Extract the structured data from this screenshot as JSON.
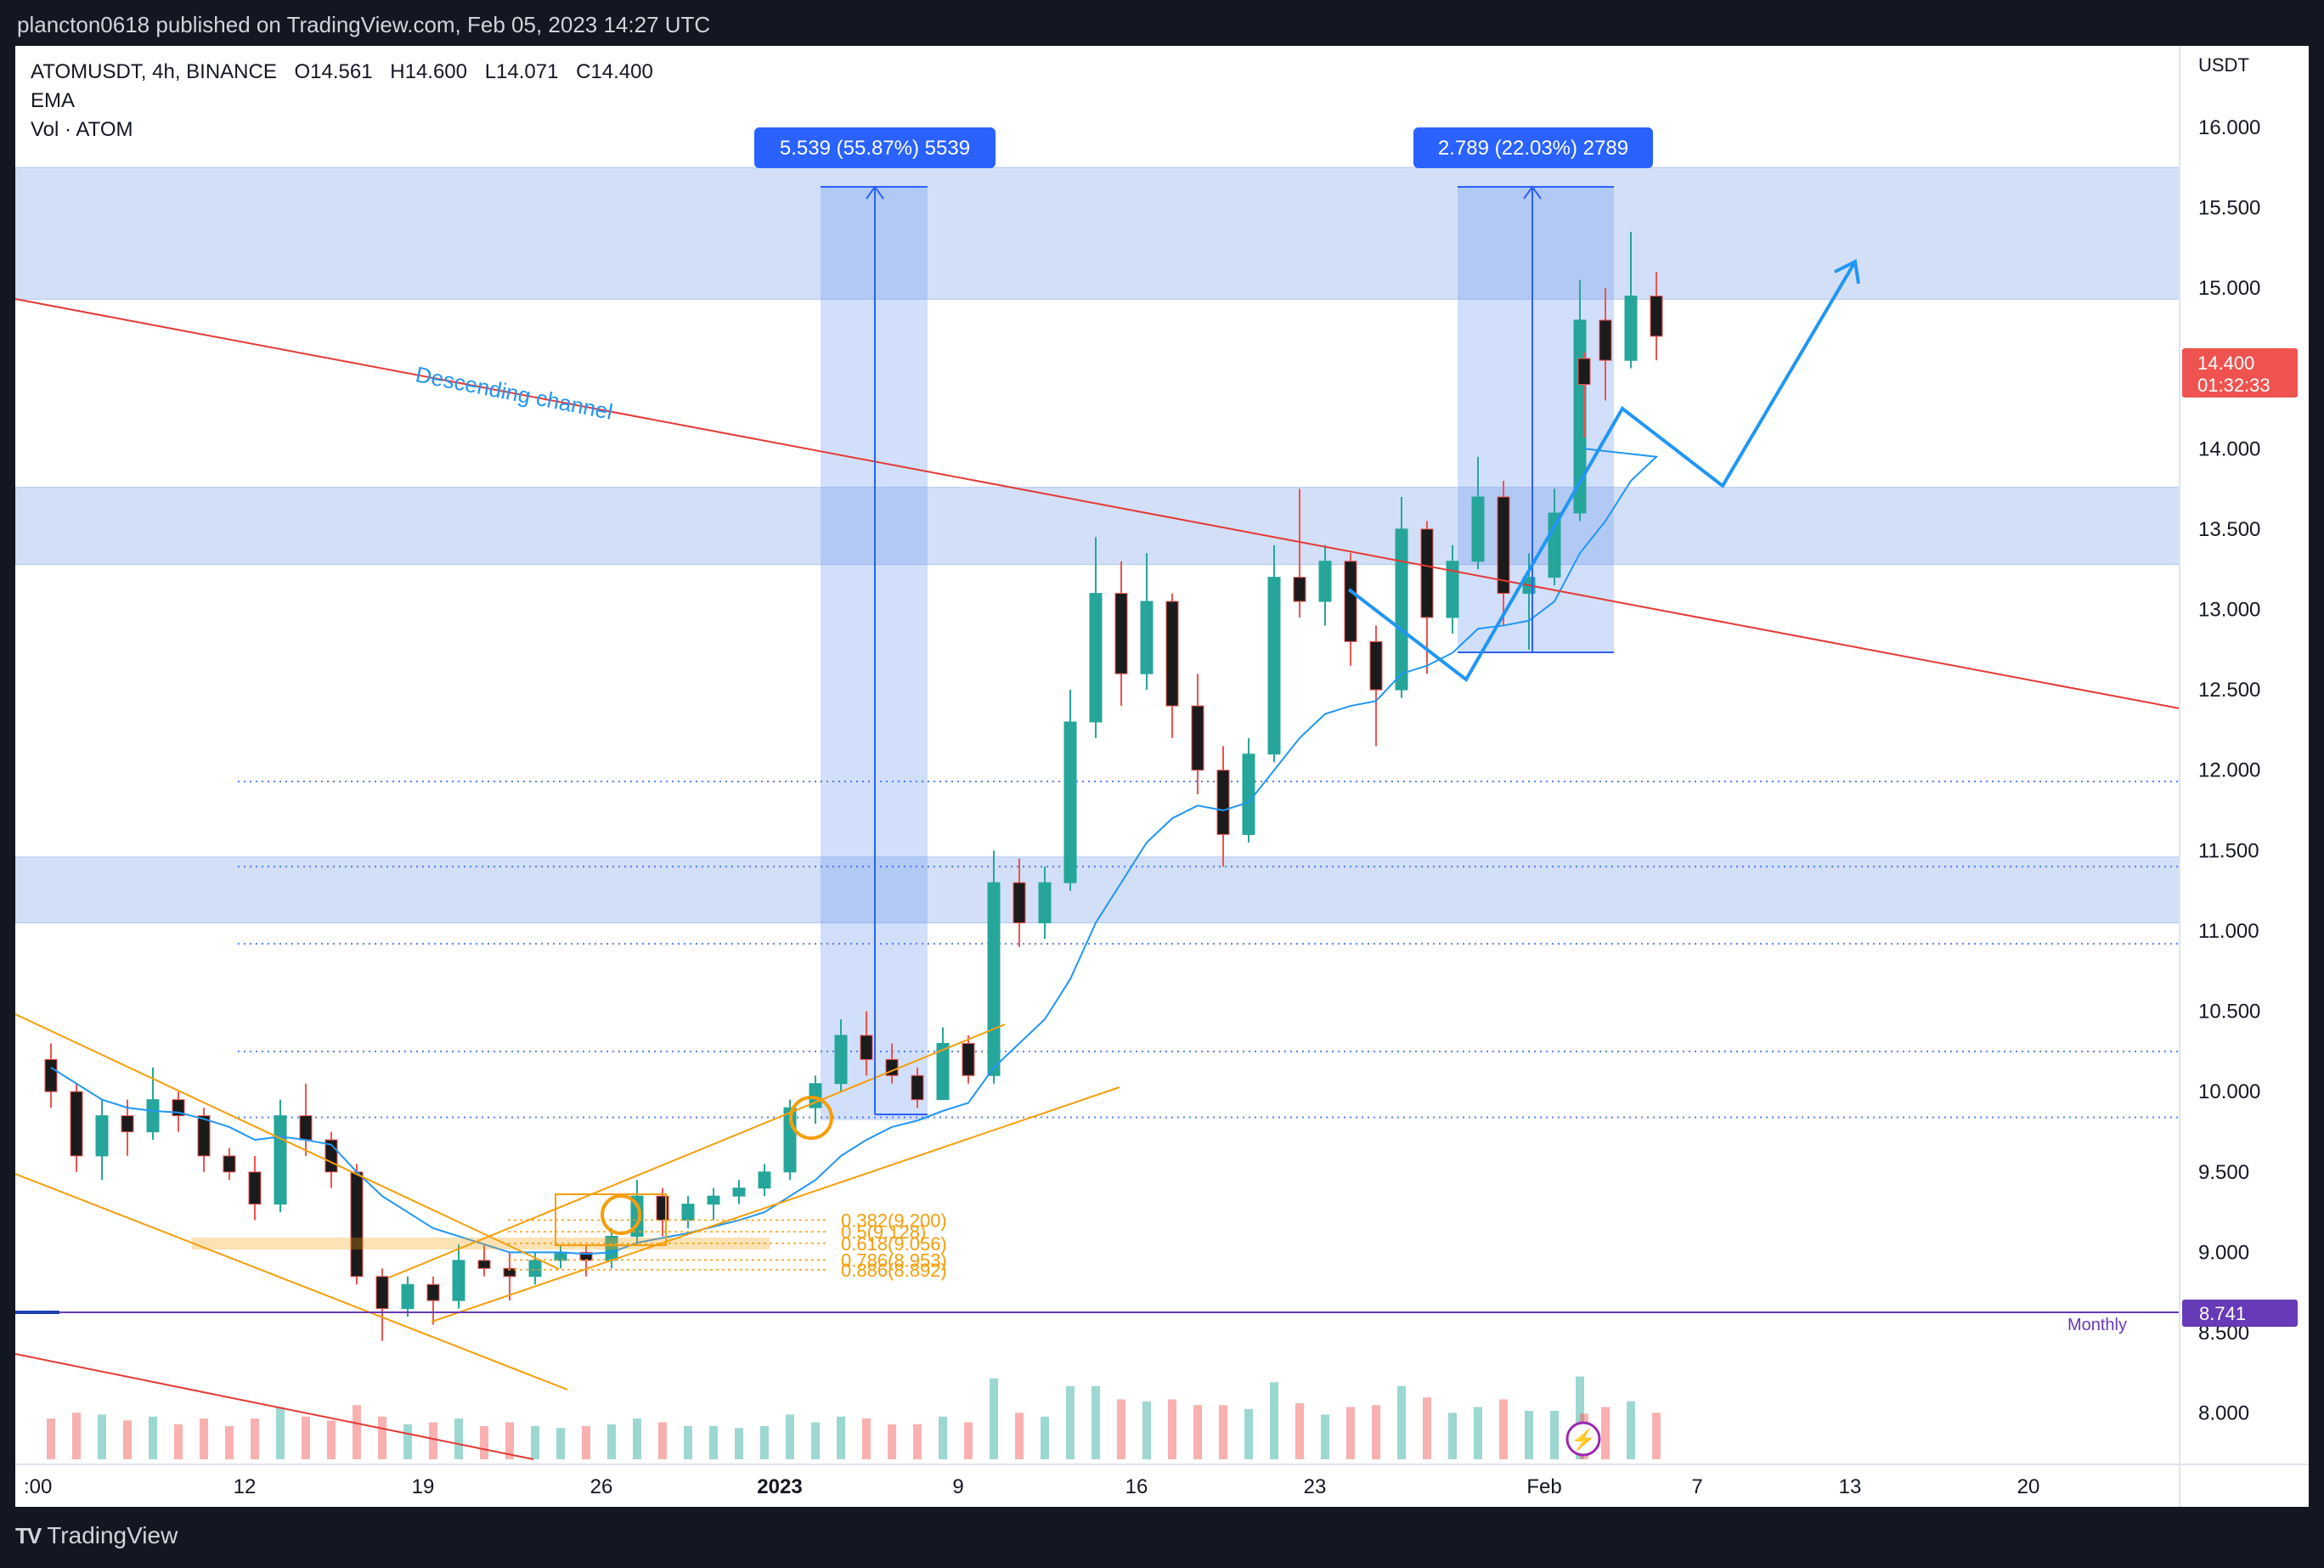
{
  "publisher_line": "plancton0618 published on TradingView.com, Feb 05, 2023 14:27 UTC",
  "header": {
    "symbol_line": "ATOMUSDT, 4h, BINANCE",
    "ohlc": [
      "O14.561",
      "H14.600",
      "L14.071",
      "C14.400"
    ],
    "indicator_ema": "EMA",
    "indicator_vol": "Vol · ATOM"
  },
  "footer": {
    "brand": "TradingView"
  },
  "colors": {
    "zone": "#c7d8f5",
    "up": "#26a69a",
    "down": "#ef5350",
    "ema": "#2196f3",
    "trendline_red": "#e53935",
    "channel_orange": "#f59e0b",
    "projection_blue": "#2196f3",
    "monthly_purple": "#673ab7"
  },
  "chart_data": {
    "type": "candlestick",
    "title": "ATOMUSDT, 4h, BINANCE",
    "y_axis_unit": "USDT",
    "ylim": [
      7.85,
      16.2
    ],
    "x_ticks": [
      ":00",
      "12",
      "19",
      "26",
      "2023",
      "9",
      "16",
      "23",
      "Feb",
      "7",
      "13",
      "20"
    ],
    "x_tick_dates": [
      "2022-12-05",
      "2022-12-12",
      "2022-12-19",
      "2022-12-26",
      "2023-01-02",
      "2023-01-09",
      "2023-01-16",
      "2023-01-23",
      "2023-02-01",
      "2023-02-07",
      "2023-02-13",
      "2023-02-20"
    ],
    "y_ticks": [
      "16.000",
      "15.500",
      "15.000",
      "14.500",
      "14.000",
      "13.500",
      "13.000",
      "12.500",
      "12.000",
      "11.500",
      "11.000",
      "10.500",
      "10.000",
      "9.500",
      "9.000",
      "8.500",
      "8.000"
    ],
    "last_price": {
      "value": "14.400",
      "countdown": "01:32:33"
    },
    "monthly_level": {
      "value": "8.741",
      "label": "Monthly"
    },
    "annotations": {
      "descending_channel": "Descending channel",
      "measure_1": "5.539 (55.87%) 5539",
      "measure_2": "2.789 (22.03%) 2789",
      "fib_levels": [
        "0.382(9.200)",
        "0.5(9.128)",
        "0.618(9.056)",
        "0.786(8.953)",
        "0.886(8.892)"
      ]
    },
    "zones": [
      {
        "from": 14.93,
        "to": 15.75
      },
      {
        "from": 13.28,
        "to": 13.76
      },
      {
        "from": 11.05,
        "to": 11.46
      }
    ],
    "dotted_levels": [
      11.93,
      11.4,
      10.92,
      10.25,
      9.84
    ],
    "ohlc_series": [
      {
        "date": "2022-12-04",
        "o": 10.2,
        "h": 10.3,
        "l": 9.9,
        "c": 10.0
      },
      {
        "date": "2022-12-05",
        "o": 10.0,
        "h": 10.05,
        "l": 9.5,
        "c": 9.6
      },
      {
        "date": "2022-12-06",
        "o": 9.6,
        "h": 9.95,
        "l": 9.45,
        "c": 9.85
      },
      {
        "date": "2022-12-07",
        "o": 9.85,
        "h": 9.95,
        "l": 9.6,
        "c": 9.75
      },
      {
        "date": "2022-12-08",
        "o": 9.75,
        "h": 10.15,
        "l": 9.7,
        "c": 9.95
      },
      {
        "date": "2022-12-09",
        "o": 9.95,
        "h": 10.0,
        "l": 9.75,
        "c": 9.85
      },
      {
        "date": "2022-12-10",
        "o": 9.85,
        "h": 9.9,
        "l": 9.5,
        "c": 9.6
      },
      {
        "date": "2022-12-11",
        "o": 9.6,
        "h": 9.65,
        "l": 9.45,
        "c": 9.5
      },
      {
        "date": "2022-12-12",
        "o": 9.5,
        "h": 9.6,
        "l": 9.2,
        "c": 9.3
      },
      {
        "date": "2022-12-13",
        "o": 9.3,
        "h": 9.95,
        "l": 9.25,
        "c": 9.85
      },
      {
        "date": "2022-12-14",
        "o": 9.85,
        "h": 10.05,
        "l": 9.6,
        "c": 9.7
      },
      {
        "date": "2022-12-15",
        "o": 9.7,
        "h": 9.75,
        "l": 9.4,
        "c": 9.5
      },
      {
        "date": "2022-12-16",
        "o": 9.5,
        "h": 9.55,
        "l": 8.8,
        "c": 8.85
      },
      {
        "date": "2022-12-17",
        "o": 8.85,
        "h": 8.9,
        "l": 8.45,
        "c": 8.65
      },
      {
        "date": "2022-12-18",
        "o": 8.65,
        "h": 8.85,
        "l": 8.6,
        "c": 8.8
      },
      {
        "date": "2022-12-19",
        "o": 8.8,
        "h": 8.85,
        "l": 8.55,
        "c": 8.7
      },
      {
        "date": "2022-12-20",
        "o": 8.7,
        "h": 9.05,
        "l": 8.65,
        "c": 8.95
      },
      {
        "date": "2022-12-21",
        "o": 8.95,
        "h": 9.05,
        "l": 8.85,
        "c": 8.9
      },
      {
        "date": "2022-12-22",
        "o": 8.9,
        "h": 9.0,
        "l": 8.7,
        "c": 8.85
      },
      {
        "date": "2022-12-23",
        "o": 8.85,
        "h": 9.0,
        "l": 8.8,
        "c": 8.95
      },
      {
        "date": "2022-12-24",
        "o": 8.95,
        "h": 9.05,
        "l": 8.9,
        "c": 9.0
      },
      {
        "date": "2022-12-25",
        "o": 9.0,
        "h": 9.05,
        "l": 8.85,
        "c": 8.95
      },
      {
        "date": "2022-12-26",
        "o": 8.95,
        "h": 9.15,
        "l": 8.9,
        "c": 9.1
      },
      {
        "date": "2022-12-27",
        "o": 9.1,
        "h": 9.45,
        "l": 9.05,
        "c": 9.35
      },
      {
        "date": "2022-12-28",
        "o": 9.35,
        "h": 9.4,
        "l": 9.1,
        "c": 9.2
      },
      {
        "date": "2022-12-29",
        "o": 9.2,
        "h": 9.35,
        "l": 9.15,
        "c": 9.3
      },
      {
        "date": "2022-12-30",
        "o": 9.3,
        "h": 9.4,
        "l": 9.2,
        "c": 9.35
      },
      {
        "date": "2022-12-31",
        "o": 9.35,
        "h": 9.45,
        "l": 9.3,
        "c": 9.4
      },
      {
        "date": "2023-01-01",
        "o": 9.4,
        "h": 9.55,
        "l": 9.35,
        "c": 9.5
      },
      {
        "date": "2023-01-02",
        "o": 9.5,
        "h": 9.95,
        "l": 9.45,
        "c": 9.9
      },
      {
        "date": "2023-01-03",
        "o": 9.9,
        "h": 10.1,
        "l": 9.8,
        "c": 10.05
      },
      {
        "date": "2023-01-04",
        "o": 10.05,
        "h": 10.45,
        "l": 10.0,
        "c": 10.35
      },
      {
        "date": "2023-01-05",
        "o": 10.35,
        "h": 10.5,
        "l": 10.1,
        "c": 10.2
      },
      {
        "date": "2023-01-06",
        "o": 10.2,
        "h": 10.3,
        "l": 10.05,
        "c": 10.1
      },
      {
        "date": "2023-01-07",
        "o": 10.1,
        "h": 10.15,
        "l": 9.9,
        "c": 9.95
      },
      {
        "date": "2023-01-08",
        "o": 9.95,
        "h": 10.4,
        "l": 9.95,
        "c": 10.3
      },
      {
        "date": "2023-01-09",
        "o": 10.3,
        "h": 10.35,
        "l": 10.05,
        "c": 10.1
      },
      {
        "date": "2023-01-10",
        "o": 10.1,
        "h": 11.5,
        "l": 10.05,
        "c": 11.3
      },
      {
        "date": "2023-01-11",
        "o": 11.3,
        "h": 11.45,
        "l": 10.9,
        "c": 11.05
      },
      {
        "date": "2023-01-12",
        "o": 11.05,
        "h": 11.4,
        "l": 10.95,
        "c": 11.3
      },
      {
        "date": "2023-01-13",
        "o": 11.3,
        "h": 12.5,
        "l": 11.25,
        "c": 12.3
      },
      {
        "date": "2023-01-14",
        "o": 12.3,
        "h": 13.45,
        "l": 12.2,
        "c": 13.1
      },
      {
        "date": "2023-01-15",
        "o": 13.1,
        "h": 13.3,
        "l": 12.4,
        "c": 12.6
      },
      {
        "date": "2023-01-16",
        "o": 12.6,
        "h": 13.35,
        "l": 12.5,
        "c": 13.05
      },
      {
        "date": "2023-01-17",
        "o": 13.05,
        "h": 13.1,
        "l": 12.2,
        "c": 12.4
      },
      {
        "date": "2023-01-18",
        "o": 12.4,
        "h": 12.6,
        "l": 11.85,
        "c": 12.0
      },
      {
        "date": "2023-01-19",
        "o": 12.0,
        "h": 12.15,
        "l": 11.4,
        "c": 11.6
      },
      {
        "date": "2023-01-20",
        "o": 11.6,
        "h": 12.2,
        "l": 11.55,
        "c": 12.1
      },
      {
        "date": "2023-01-21",
        "o": 12.1,
        "h": 13.4,
        "l": 12.05,
        "c": 13.2
      },
      {
        "date": "2023-01-22",
        "o": 13.2,
        "h": 13.75,
        "l": 12.95,
        "c": 13.05
      },
      {
        "date": "2023-01-23",
        "o": 13.05,
        "h": 13.4,
        "l": 12.9,
        "c": 13.3
      },
      {
        "date": "2023-01-24",
        "o": 13.3,
        "h": 13.35,
        "l": 12.65,
        "c": 12.8
      },
      {
        "date": "2023-01-25",
        "o": 12.8,
        "h": 12.9,
        "l": 12.15,
        "c": 12.5
      },
      {
        "date": "2023-01-26",
        "o": 12.5,
        "h": 13.7,
        "l": 12.45,
        "c": 13.5
      },
      {
        "date": "2023-01-27",
        "o": 13.5,
        "h": 13.55,
        "l": 12.6,
        "c": 12.95
      },
      {
        "date": "2023-01-28",
        "o": 12.95,
        "h": 13.4,
        "l": 12.85,
        "c": 13.3
      },
      {
        "date": "2023-01-29",
        "o": 13.3,
        "h": 13.95,
        "l": 13.25,
        "c": 13.7
      },
      {
        "date": "2023-01-30",
        "o": 13.7,
        "h": 13.8,
        "l": 12.9,
        "c": 13.1
      },
      {
        "date": "2023-01-31",
        "o": 13.1,
        "h": 13.35,
        "l": 12.75,
        "c": 13.2
      },
      {
        "date": "2023-02-01",
        "o": 13.2,
        "h": 13.75,
        "l": 13.15,
        "c": 13.6
      },
      {
        "date": "2023-02-02",
        "o": 13.6,
        "h": 15.05,
        "l": 13.55,
        "c": 14.8
      },
      {
        "date": "2023-02-03",
        "o": 14.8,
        "h": 15.0,
        "l": 14.3,
        "c": 14.55
      },
      {
        "date": "2023-02-04",
        "o": 14.55,
        "h": 15.35,
        "l": 14.5,
        "c": 14.95
      },
      {
        "date": "2023-02-05",
        "o": 14.95,
        "h": 15.1,
        "l": 14.55,
        "c": 14.7
      },
      {
        "date": "2023-02-05",
        "o": 14.561,
        "h": 14.6,
        "l": 14.071,
        "c": 14.4
      }
    ],
    "ema_series": [
      10.15,
      10.05,
      9.95,
      9.9,
      9.88,
      9.87,
      9.83,
      9.78,
      9.7,
      9.72,
      9.7,
      9.67,
      9.5,
      9.35,
      9.25,
      9.15,
      9.1,
      9.05,
      9.0,
      9.0,
      9.0,
      8.99,
      9.0,
      9.06,
      9.09,
      9.12,
      9.16,
      9.2,
      9.25,
      9.35,
      9.45,
      9.6,
      9.7,
      9.78,
      9.82,
      9.88,
      9.93,
      10.15,
      10.3,
      10.45,
      10.7,
      11.05,
      11.3,
      11.55,
      11.7,
      11.78,
      11.75,
      11.8,
      12.0,
      12.2,
      12.35,
      12.4,
      12.43,
      12.6,
      12.65,
      12.73,
      12.88,
      12.9,
      12.93,
      13.05,
      13.35,
      13.55,
      13.8,
      13.95,
      14.0
    ]
  }
}
